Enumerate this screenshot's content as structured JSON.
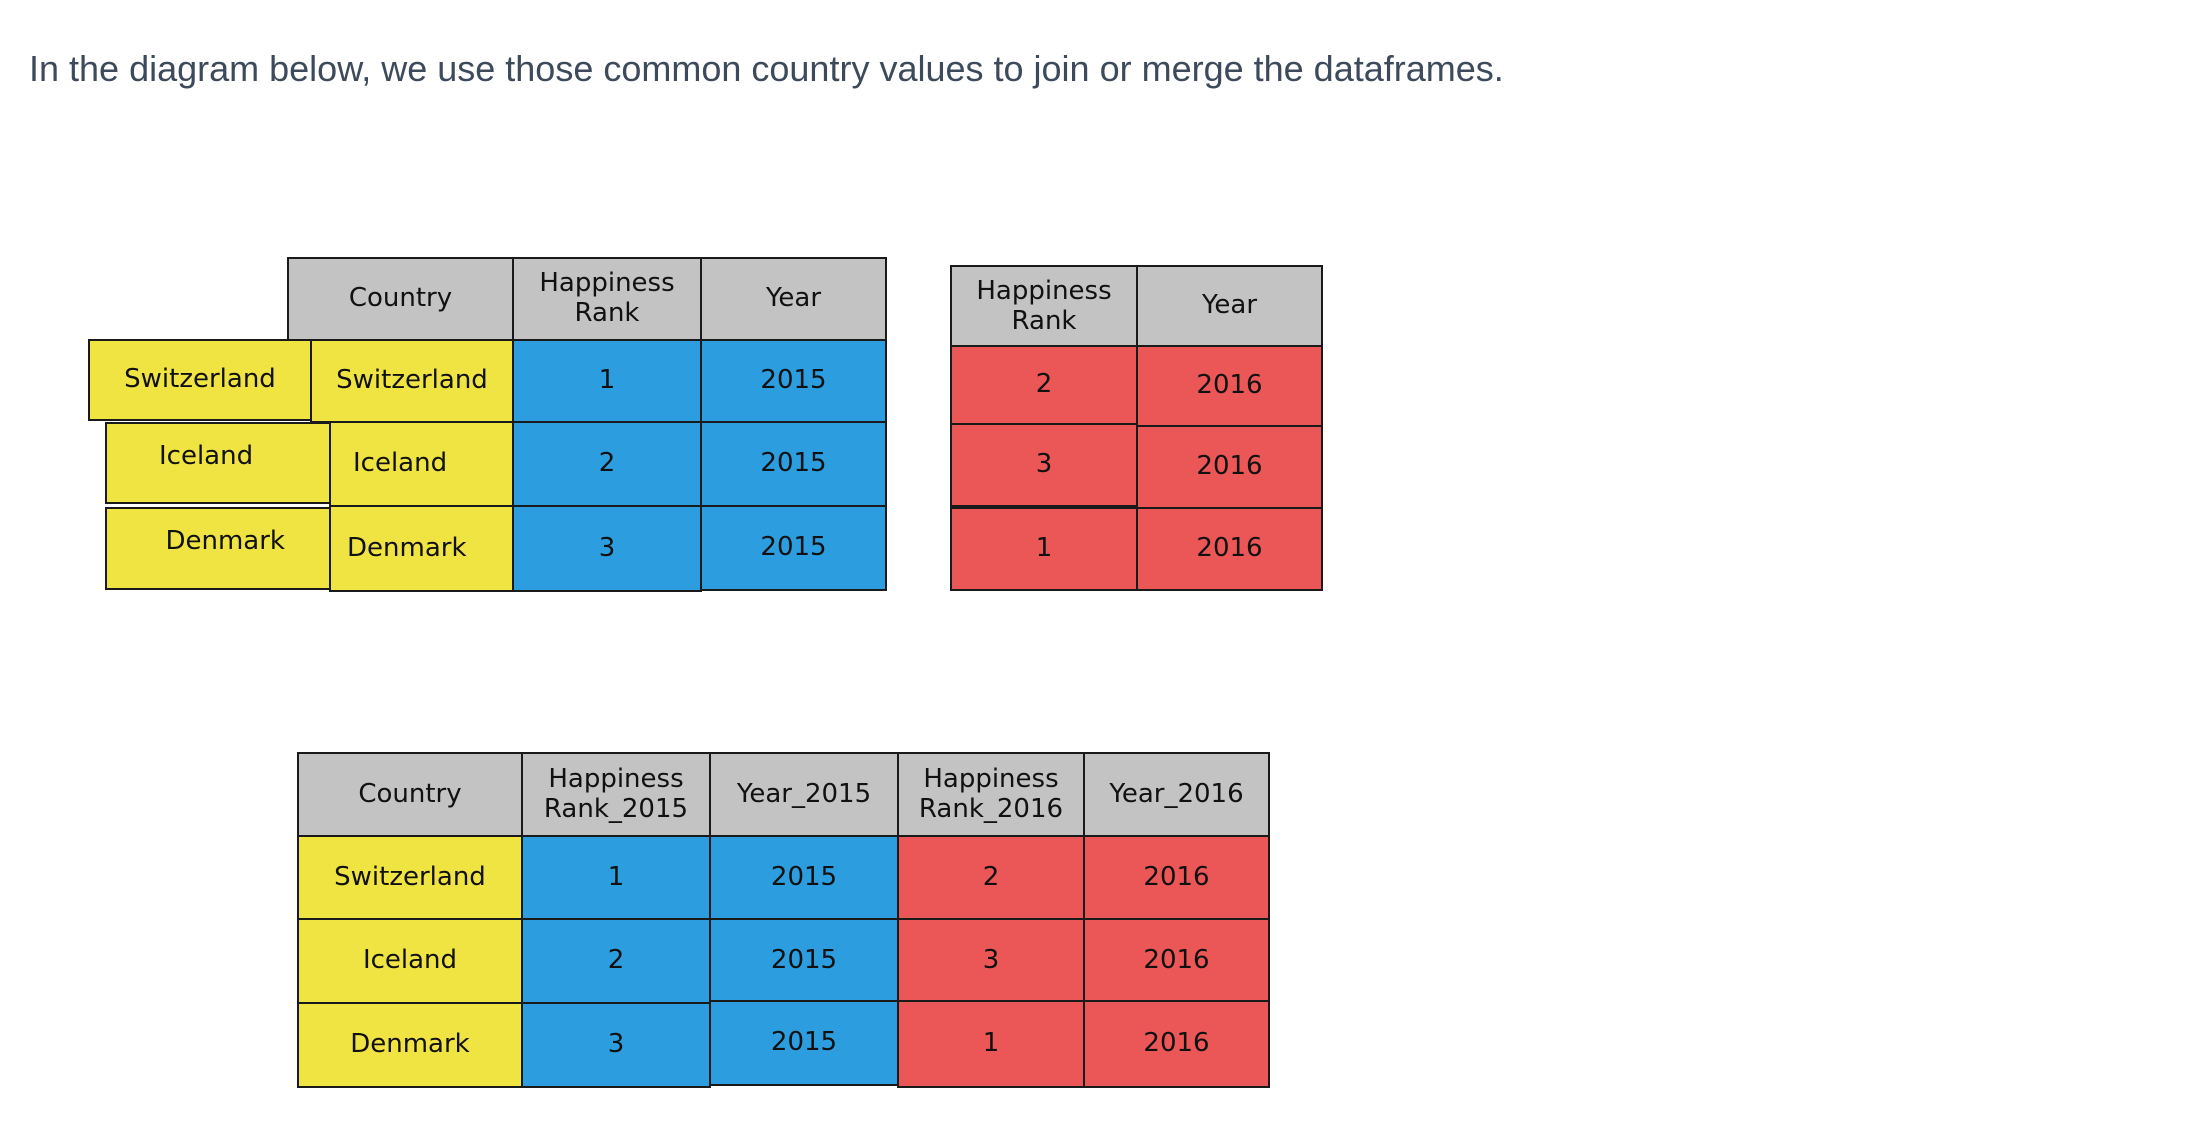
{
  "intro_text": "In the diagram below, we use those common country values to join or merge the dataframes.",
  "colors": {
    "header": "#c3c3c3",
    "country": "#f0e443",
    "df2015": "#2c9ddf",
    "df2016": "#eb5656"
  },
  "join_keys": [
    "Switzerland",
    "Iceland",
    "Denmark"
  ],
  "df2015": {
    "headers": [
      "Country",
      "Happiness\nRank",
      "Year"
    ],
    "rows": [
      [
        "Switzerland",
        "1",
        "2015"
      ],
      [
        "Iceland",
        "2",
        "2015"
      ],
      [
        "Denmark",
        "3",
        "2015"
      ]
    ]
  },
  "df2016": {
    "headers": [
      "Happiness\nRank",
      "Year"
    ],
    "rows": [
      [
        "2",
        "2016"
      ],
      [
        "3",
        "2016"
      ],
      [
        "1",
        "2016"
      ]
    ]
  },
  "merged": {
    "headers": [
      "Country",
      "Happiness\nRank_2015",
      "Year_2015",
      "Happiness\nRank_2016",
      "Year_2016"
    ],
    "rows": [
      [
        "Switzerland",
        "1",
        "2015",
        "2",
        "2016"
      ],
      [
        "Iceland",
        "2",
        "2015",
        "3",
        "2016"
      ],
      [
        "Denmark",
        "3",
        "2015",
        "1",
        "2016"
      ]
    ]
  }
}
